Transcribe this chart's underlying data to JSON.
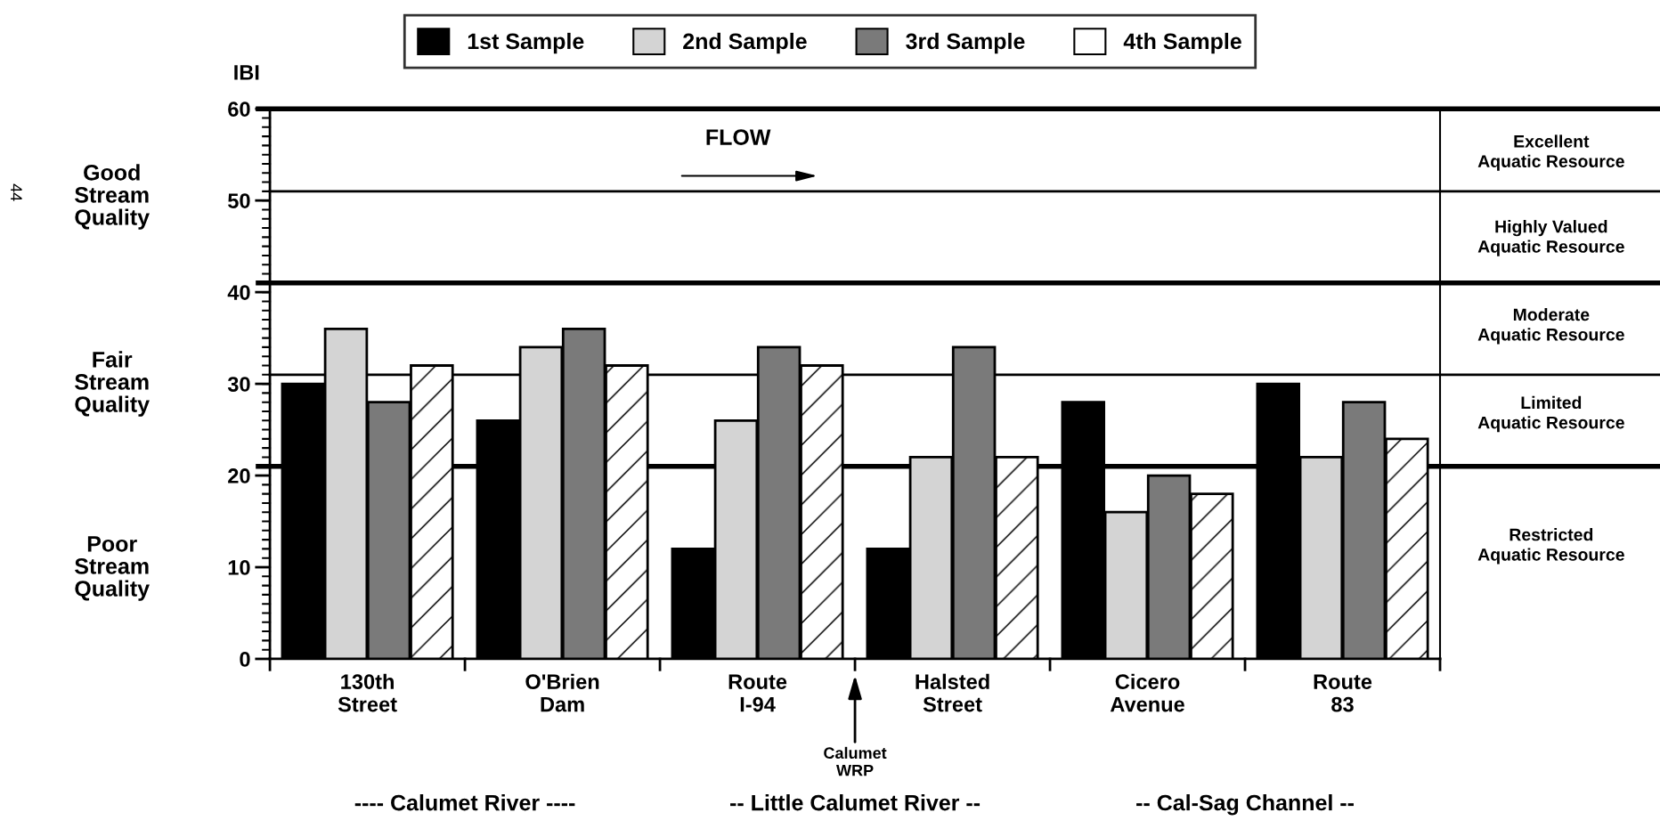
{
  "chart_data": {
    "type": "bar",
    "ylabel": "IBI",
    "categories": [
      "130th\nStreet",
      "O'Brien\nDam",
      "Route\nI-94",
      "Halsted\nStreet",
      "Cicero\nAvenue",
      "Route\n83"
    ],
    "series": [
      {
        "name": "1st Sample",
        "color": "#000000",
        "values": [
          30,
          26,
          12,
          12,
          28,
          30
        ]
      },
      {
        "name": "2nd Sample",
        "color": "#d4d4d4",
        "values": [
          36,
          34,
          26,
          22,
          16,
          22
        ]
      },
      {
        "name": "3rd Sample",
        "color": "#7a7a7a",
        "values": [
          28,
          36,
          34,
          34,
          20,
          28
        ]
      },
      {
        "name": "4th Sample",
        "color": "#ffffff",
        "values": [
          32,
          32,
          32,
          22,
          18,
          24
        ]
      }
    ],
    "ylim": [
      0,
      60
    ],
    "yticks": [
      0,
      10,
      20,
      30,
      40,
      50,
      60
    ],
    "grid": false,
    "legend": "top",
    "ref_lines": [
      {
        "axis": "y",
        "value": 60,
        "label": null
      },
      {
        "axis": "y",
        "value": 51,
        "label": null
      },
      {
        "axis": "y",
        "value": 41,
        "label": null
      },
      {
        "axis": "y",
        "value": 31,
        "label": null
      },
      {
        "axis": "y",
        "value": 21,
        "label": null
      }
    ],
    "annotations": [
      "Good\nStream\nQuality",
      "Fair\nStream\nQuality",
      "Poor\nStream\nQuality",
      "Excellent\nAquatic Resource",
      "Highly Valued\nAquatic Resource",
      "Moderate\nAquatic Resource",
      "Limited\nAquatic Resource",
      "Restricted\nAquatic Resource",
      "FLOW",
      "Calumet\nWRP",
      "---- Calumet River ----",
      "-- Little Calumet River --",
      "-- Cal-Sag Channel --",
      "44"
    ]
  }
}
